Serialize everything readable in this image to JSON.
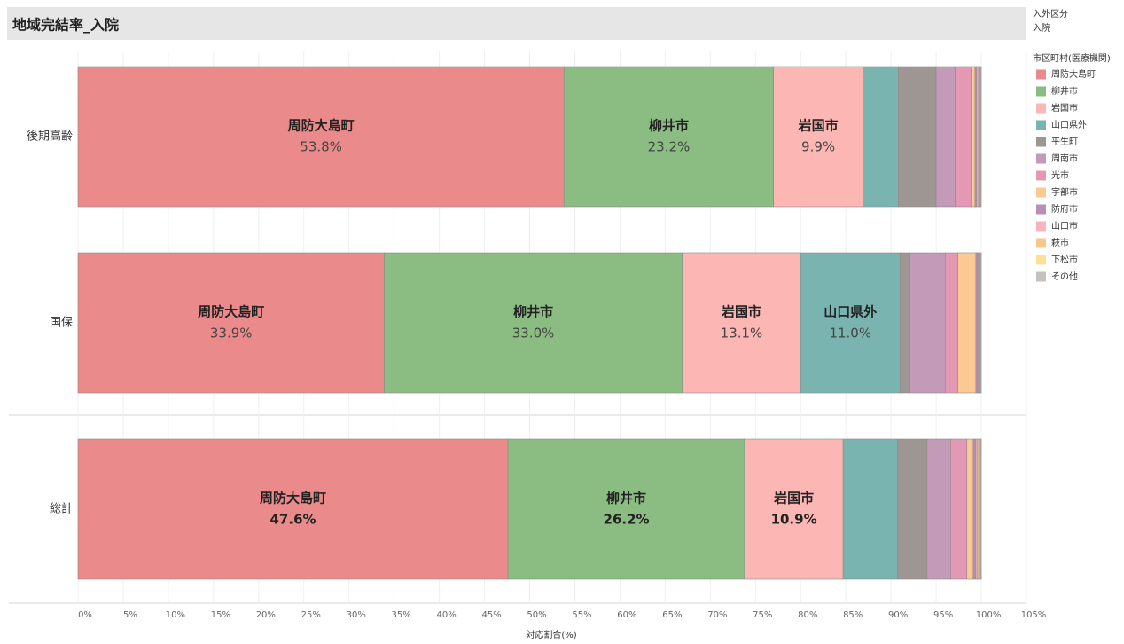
{
  "chart_data": {
    "type": "bar",
    "orientation": "horizontal",
    "stacked": true,
    "title": "地域完結率_入院",
    "filter_title": "入外区分",
    "filter_value": "入院",
    "legend_title": "市区町村(医療機関)",
    "xlabel": "対応割合(%)",
    "categories": [
      "後期高齢",
      "国保",
      "総計"
    ],
    "xlim": [
      0,
      105
    ],
    "xticks": [
      {
        "value": 0,
        "label": "0%"
      },
      {
        "value": 5,
        "label": "5%"
      },
      {
        "value": 10,
        "label": "10%"
      },
      {
        "value": 15,
        "label": "15%"
      },
      {
        "value": 20,
        "label": "20%"
      },
      {
        "value": 25,
        "label": "25%"
      },
      {
        "value": 30,
        "label": "30%"
      },
      {
        "value": 35,
        "label": "35%"
      },
      {
        "value": 40,
        "label": "40%"
      },
      {
        "value": 45,
        "label": "45%"
      },
      {
        "value": 50,
        "label": "50%"
      },
      {
        "value": 55,
        "label": "55%"
      },
      {
        "value": 60,
        "label": "60%"
      },
      {
        "value": 65,
        "label": "65%"
      },
      {
        "value": 70,
        "label": "70%"
      },
      {
        "value": 75,
        "label": "75%"
      },
      {
        "value": 80,
        "label": "80%"
      },
      {
        "value": 85,
        "label": "85%"
      },
      {
        "value": 90,
        "label": "90%"
      },
      {
        "value": 95,
        "label": "95%"
      },
      {
        "value": 100,
        "label": "100%"
      },
      {
        "value": 105,
        "label": "105%"
      }
    ],
    "grid": true,
    "legend": "right",
    "series": [
      {
        "name": "周防大島町",
        "color": "#eb8a8a",
        "values": [
          53.8,
          33.9,
          47.6
        ],
        "value_labels": [
          "53.8%",
          "33.9%",
          "47.6%"
        ]
      },
      {
        "name": "柳井市",
        "color": "#8bbd82",
        "values": [
          23.2,
          33.0,
          26.2
        ],
        "value_labels": [
          "23.2%",
          "33.0%",
          "26.2%"
        ]
      },
      {
        "name": "岩国市",
        "color": "#fcb6b3",
        "values": [
          9.9,
          13.1,
          10.9
        ],
        "value_labels": [
          "9.9%",
          "13.1%",
          "10.9%"
        ]
      },
      {
        "name": "山口県外",
        "color": "#7ab4b1",
        "values": [
          3.9,
          11.0,
          6.0
        ],
        "value_labels": [
          null,
          "11.0%",
          null
        ]
      },
      {
        "name": "平生町",
        "color": "#9d9692",
        "values": [
          4.2,
          1.1,
          3.3
        ]
      },
      {
        "name": "周南市",
        "color": "#c49ab9",
        "values": [
          2.1,
          3.9,
          2.6
        ]
      },
      {
        "name": "光市",
        "color": "#e398b4",
        "values": [
          1.8,
          1.4,
          1.8
        ]
      },
      {
        "name": "宇部市",
        "color": "#fcc995",
        "values": [
          0.4,
          2.0,
          0.7
        ]
      },
      {
        "name": "防府市",
        "color": "#b98fb3",
        "values": [
          0.2,
          0.2,
          0.3
        ]
      },
      {
        "name": "山口市",
        "color": "#f9b4c2",
        "values": [
          0.2,
          0.1,
          0.2
        ]
      },
      {
        "name": "萩市",
        "color": "#f6c88d",
        "values": [
          0.1,
          0.1,
          0.2
        ]
      },
      {
        "name": "下松市",
        "color": "#fce09a",
        "values": [
          0.1,
          0.1,
          0.1
        ]
      },
      {
        "name": "その他",
        "color": "#c6c1bf",
        "values": [
          0.1,
          0.1,
          0.1
        ]
      }
    ]
  }
}
